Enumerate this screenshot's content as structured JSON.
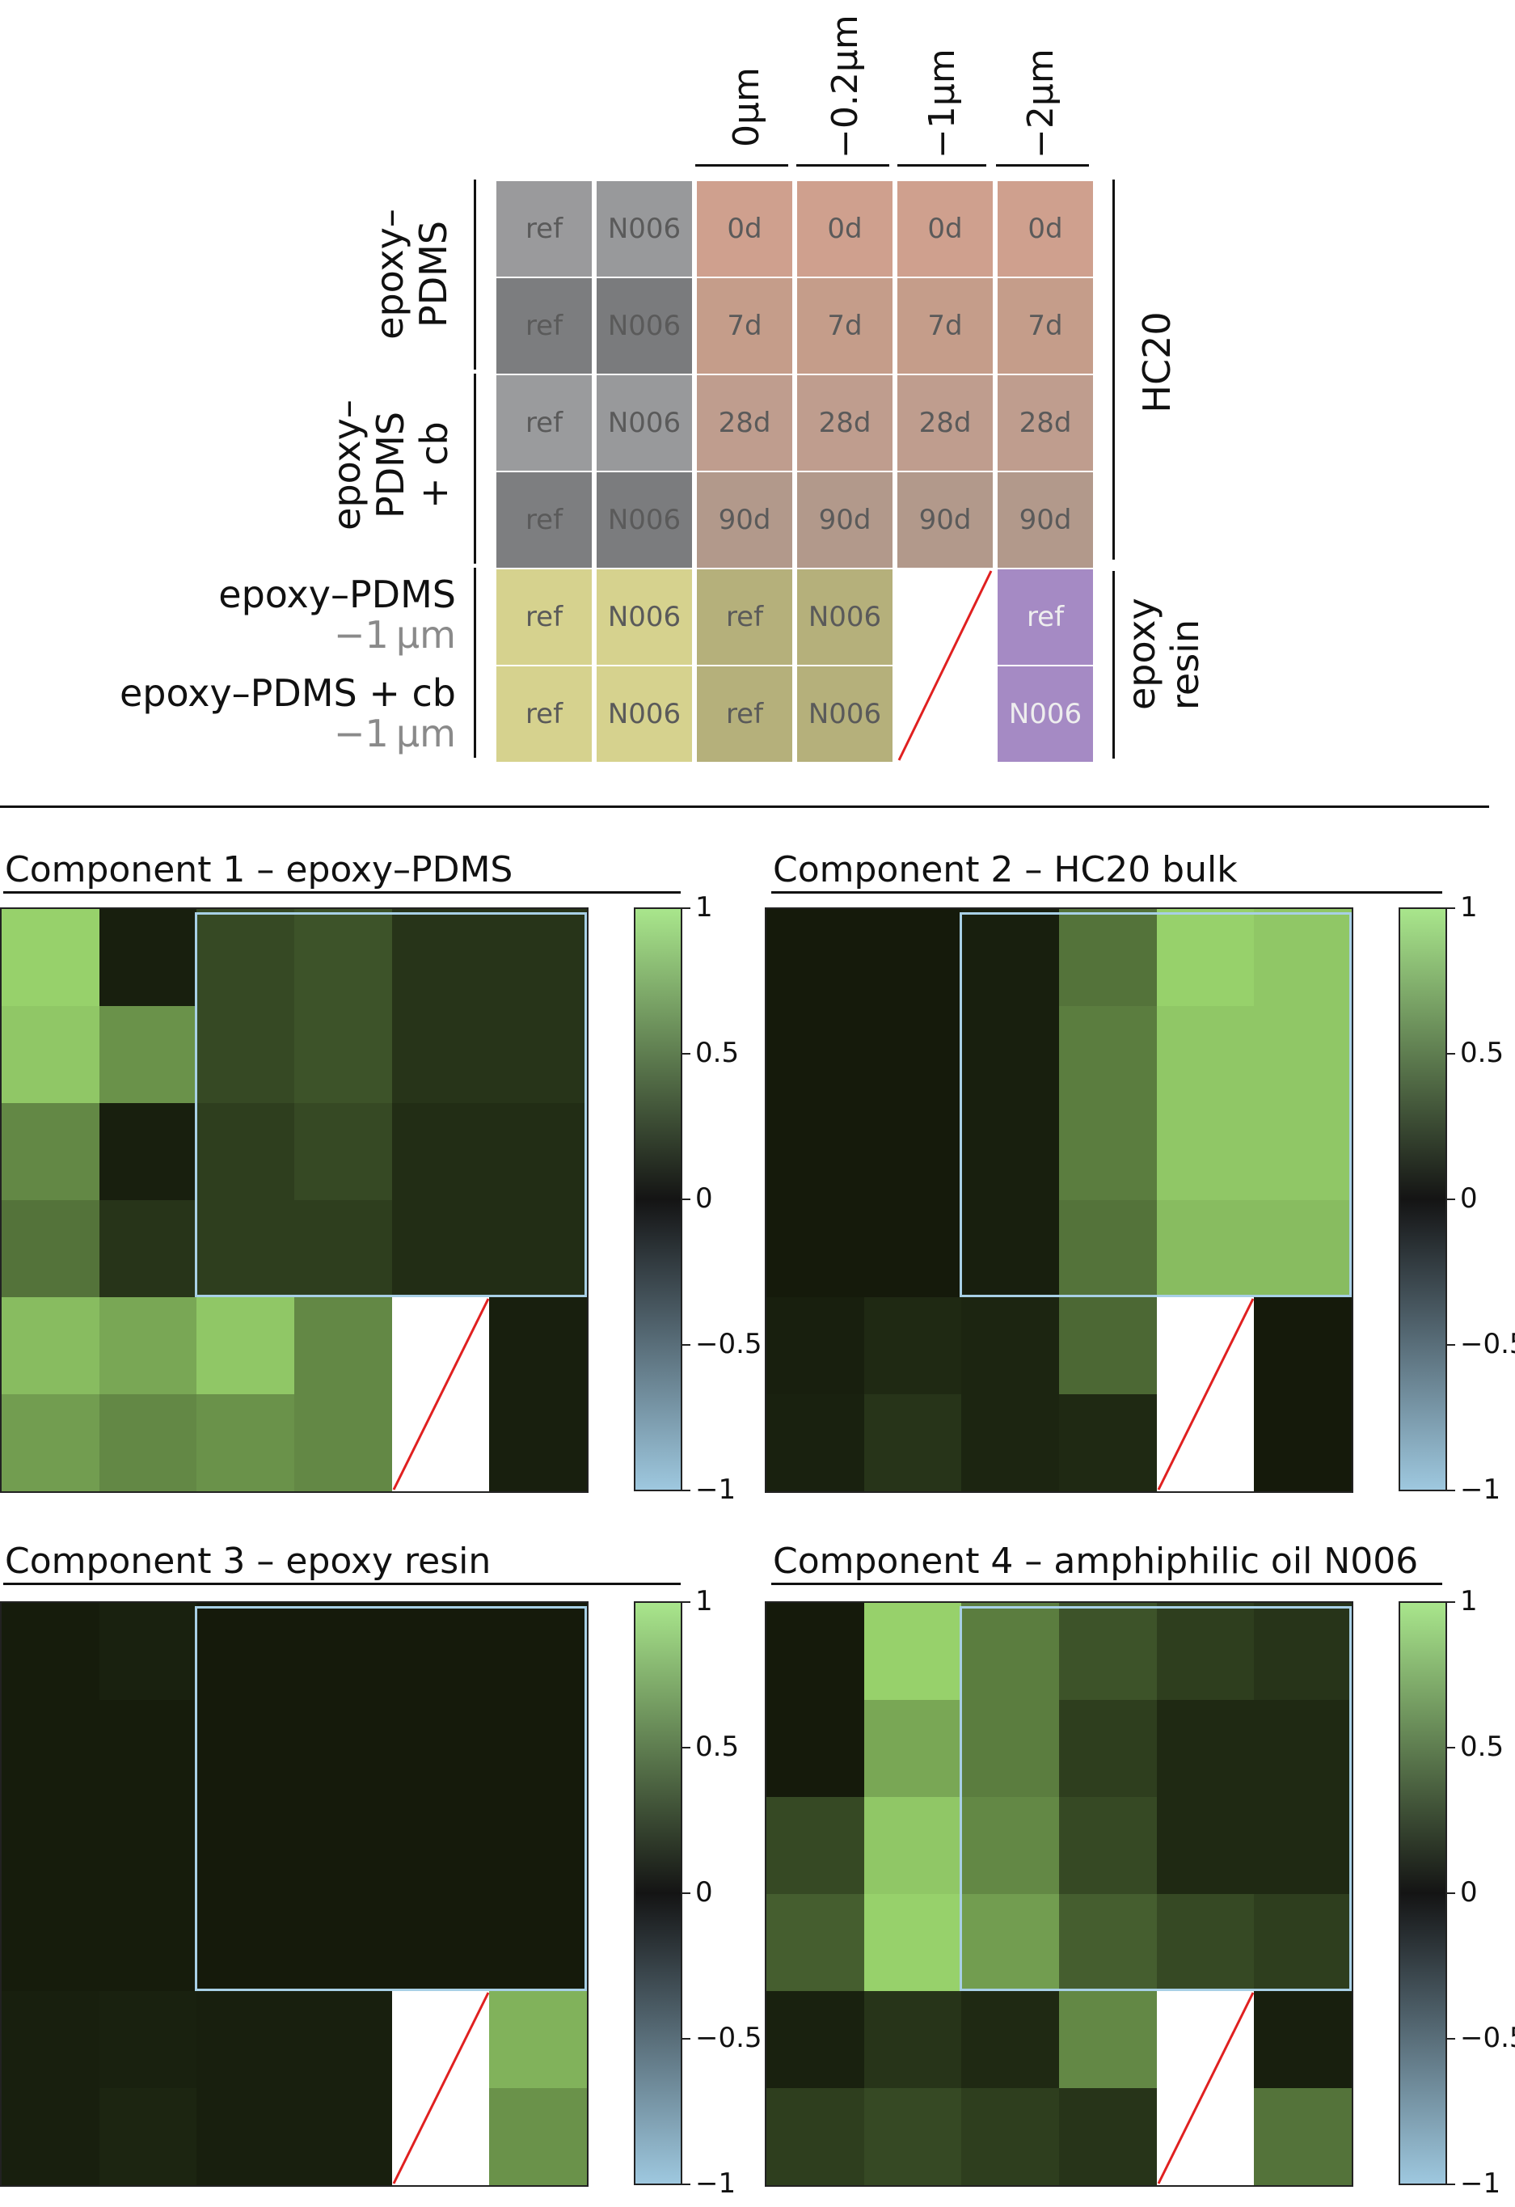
{
  "grid": {
    "columns": [
      "0µm",
      "−0.2µm",
      "−1µm",
      "−2µm"
    ],
    "row_groups": [
      {
        "label_line1": "epoxy–",
        "label_line2": "PDMS"
      },
      {
        "label_line1": "epoxy–",
        "label_line2": "PDMS",
        "label_line3": "+ cb"
      }
    ],
    "side_groups": [
      "HC20",
      "epoxy resin"
    ],
    "epoxy_rows": [
      {
        "label": "epoxy–PDMS",
        "sub": "−1 µm"
      },
      {
        "label": "epoxy–PDMS + cb",
        "sub": "−1 µm"
      }
    ],
    "ref": "ref",
    "n006": "N006",
    "times": [
      "0d",
      "7d",
      "28d",
      "90d"
    ],
    "colors": {
      "gray_light": "#9a9a9c",
      "gray_dark": "#7b7c7e",
      "salmon": "#cfa08e",
      "salmon_dark": "#b99a8b",
      "yellow": "#d6d28e",
      "olive": "#b5b07b",
      "purple": "#a58ac4",
      "diag": "#e02020"
    }
  },
  "components": [
    {
      "title": "Component 1 – epoxy–PDMS"
    },
    {
      "title": "Component 2 – HC20 bulk"
    },
    {
      "title": "Component 3 – epoxy resin"
    },
    {
      "title": "Component 4 – amphiphilic oil N006"
    }
  ],
  "colorbar": {
    "ticks": [
      "1",
      "0.5",
      "0",
      "−0.5",
      "−1"
    ],
    "top_color": "#a9e68c",
    "mid_color": "#141414",
    "bottom_color": "#9ec8df"
  }
}
